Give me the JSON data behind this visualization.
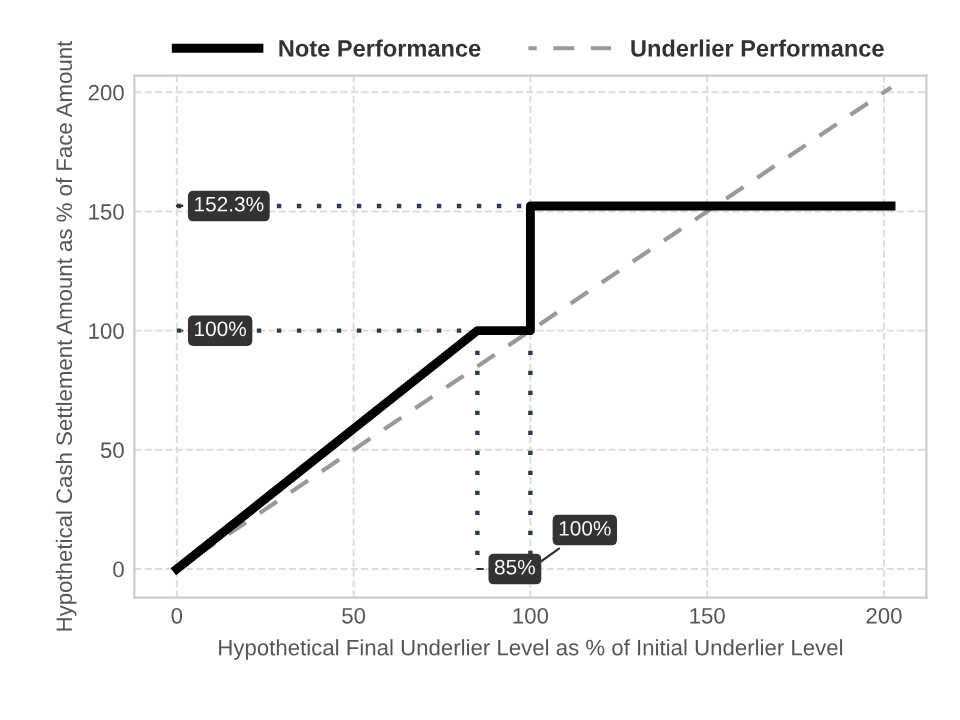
{
  "chart_data": {
    "type": "line",
    "xlabel": "Hypothetical Final Underlier Level as % of Initial Underlier Level",
    "ylabel": "Hypothetical Cash Settlement Amount as % of Face Amount",
    "xlim": [
      -12,
      212
    ],
    "ylim": [
      -12,
      207
    ],
    "xticks": [
      0,
      50,
      100,
      150,
      200
    ],
    "yticks": [
      0,
      50,
      100,
      150,
      200
    ],
    "grid": true,
    "legend": "top",
    "series": [
      {
        "name": "Note Performance",
        "color": "#000000",
        "line_style": "solid",
        "x": [
          0,
          85,
          100,
          100,
          202
        ],
        "values": [
          0,
          100,
          100,
          152.3,
          152.3
        ]
      },
      {
        "name": "Underlier Performance",
        "color": "#999999",
        "line_style": "dashed",
        "x": [
          0,
          202
        ],
        "values": [
          0,
          202
        ]
      },
      {
        "color": "#2d3a4f",
        "line_style": "dotted",
        "x": [
          0,
          100
        ],
        "values": [
          152.3,
          152.3
        ]
      },
      {
        "color": "#2d3a4f",
        "line_style": "dotted",
        "x": [
          0,
          85
        ],
        "values": [
          100,
          100
        ]
      },
      {
        "color": "#2d3a4f",
        "line_style": "dotted",
        "x": [
          85,
          85
        ],
        "values": [
          100,
          0
        ]
      },
      {
        "color": "#2d3a4f",
        "line_style": "dotted",
        "x": [
          100,
          100
        ],
        "values": [
          100,
          0
        ]
      }
    ],
    "annotations": [
      {
        "text": "152.3%",
        "x": 0,
        "y": 152.3
      },
      {
        "text": "100%",
        "x": 0,
        "y": 100
      },
      {
        "text": "85%",
        "x": 85,
        "y": 0
      },
      {
        "text": "100%",
        "x": 100,
        "y": 0
      }
    ]
  }
}
